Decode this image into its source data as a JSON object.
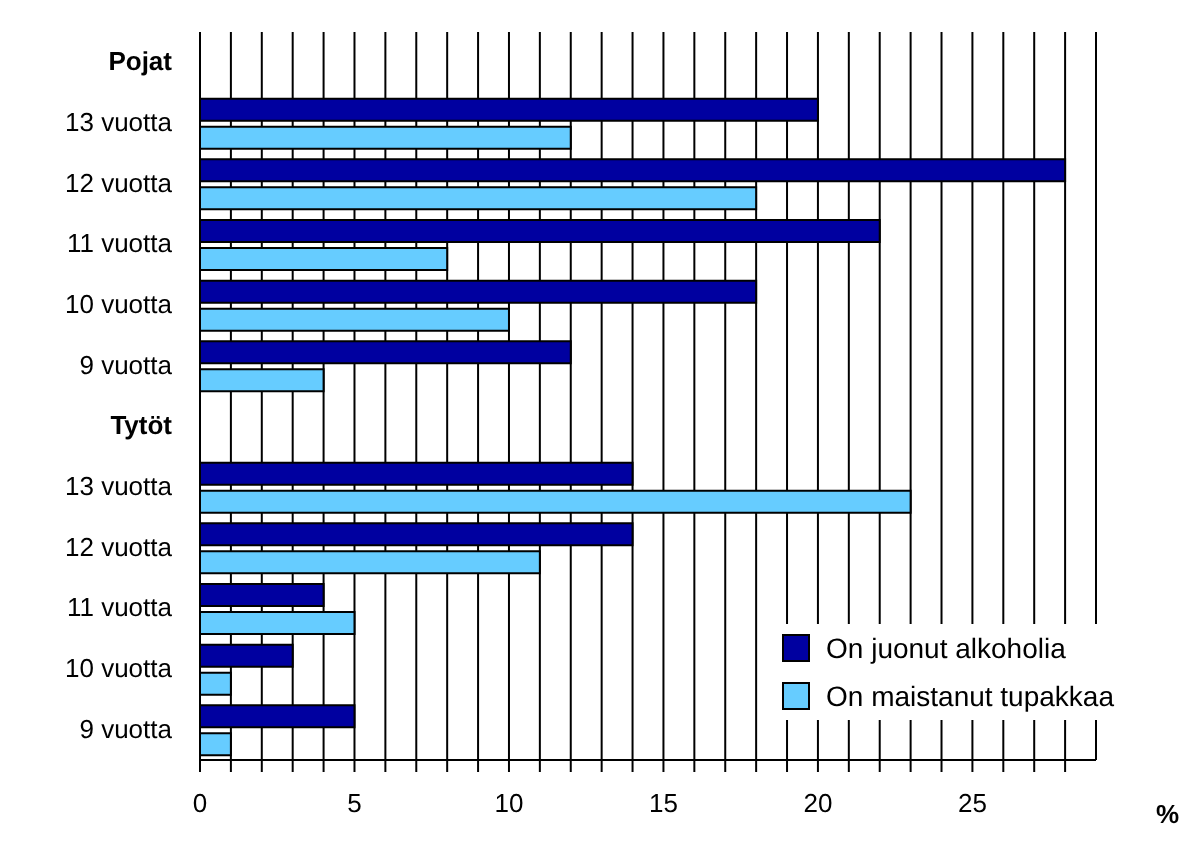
{
  "chart_data": {
    "type": "bar",
    "orientation": "horizontal",
    "xlabel": "%",
    "categories": [
      "Pojat",
      "13 vuotta",
      "12 vuotta",
      "11 vuotta",
      "10 vuotta",
      "9 vuotta",
      "Tytöt",
      "13 vuotta",
      "12 vuotta",
      "11 vuotta",
      "10 vuotta",
      "9 vuotta"
    ],
    "series": [
      {
        "name": "On juonut alkoholia",
        "color": "#0000a0",
        "values": [
          null,
          20,
          28,
          22,
          18,
          12,
          null,
          14,
          14,
          4,
          3,
          5
        ]
      },
      {
        "name": "On maistanut tupakkaa",
        "color": "#66ccff",
        "values": [
          null,
          12,
          18,
          8,
          10,
          4,
          null,
          23,
          11,
          5,
          1,
          1
        ]
      }
    ],
    "xlim": [
      0,
      29
    ],
    "xticks": [
      0,
      {
        "value": 1,
        "label": null
      },
      {
        "value": 2,
        "label": null
      },
      {
        "value": 3,
        "label": null
      },
      {
        "value": 4,
        "label": null
      },
      5,
      {
        "value": 6,
        "label": null
      },
      {
        "value": 7,
        "label": null
      },
      {
        "value": 8,
        "label": null
      },
      {
        "value": 9,
        "label": null
      },
      10,
      {
        "value": 11,
        "label": null
      },
      {
        "value": 12,
        "label": null
      },
      {
        "value": 13,
        "label": null
      },
      {
        "value": 14,
        "label": null
      },
      15,
      {
        "value": 16,
        "label": null
      },
      {
        "value": 17,
        "label": null
      },
      {
        "value": 18,
        "label": null
      },
      {
        "value": 19,
        "label": null
      },
      20,
      {
        "value": 21,
        "label": null
      },
      {
        "value": 22,
        "label": null
      },
      {
        "value": 23,
        "label": null
      },
      {
        "value": 24,
        "label": null
      },
      25,
      {
        "value": 26,
        "label": null
      },
      {
        "value": 27,
        "label": null
      },
      {
        "value": 28,
        "label": null
      }
    ],
    "grid": "x",
    "legend": "bottom right"
  }
}
